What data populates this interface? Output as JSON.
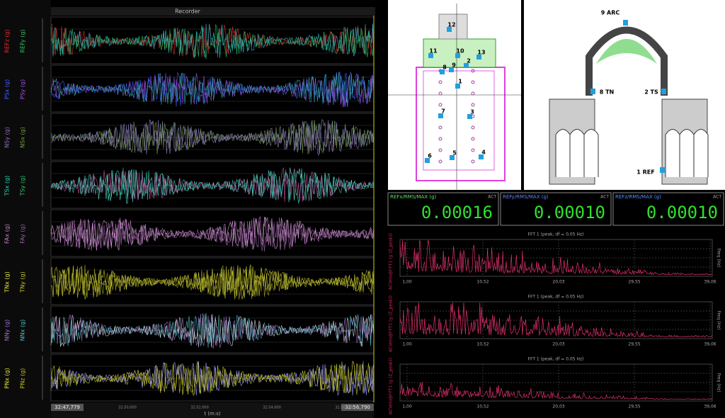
{
  "recorder": {
    "title": "Recorder",
    "strips": [
      {
        "labels": [
          "REFz (g)",
          "REFy (g)"
        ]
      },
      {
        "labels": [
          "PSx (g)",
          "PSy (g)"
        ]
      },
      {
        "labels": [
          "NSy (g)",
          "NSx (g)"
        ]
      },
      {
        "labels": [
          "TSx (g)",
          "TSy (g)"
        ]
      },
      {
        "labels": [
          "FAx (g)",
          "FAy (g)"
        ]
      },
      {
        "labels": [
          "TNx (g)",
          "TNy (g)"
        ]
      },
      {
        "labels": [
          "NNy (g)",
          "NNx (g)"
        ]
      },
      {
        "labels": [
          "PNx (g)",
          "PNz (g)"
        ]
      }
    ],
    "time_start": "32:47,779",
    "time_end": "32:56,790",
    "time_ticks": [
      "32:50,000",
      "32:52,000",
      "32:54,000",
      "32:56,000"
    ],
    "time_axis_label": "t (m:s)"
  },
  "plan": {
    "labels": [
      "12",
      "11",
      "10",
      "13",
      "8",
      "9",
      "2",
      "1",
      "7",
      "3",
      "6",
      "5",
      "4"
    ]
  },
  "section": {
    "labels": [
      "9 ARC",
      "8 TN",
      "2 TS",
      "1 REF"
    ]
  },
  "meters": [
    {
      "label": "REFx/RMS/MAX (g)",
      "status": "ACT",
      "value": "0.00016"
    },
    {
      "label": "REFy/RMS/MAX (g)",
      "status": "ACT",
      "value": "0.00010"
    },
    {
      "label": "REFz/RMS/MAX (g)",
      "status": "ACT",
      "value": "0.00010"
    }
  ],
  "fft": [
    {
      "title": "FFT 1 (peak, df = 0.05 Hz)",
      "y_label": "ACVelo@FFT1 (g (Z_peak))",
      "x_label": "Freq (Hz)",
      "x_ticks": [
        "1,00",
        "10,52",
        "20,03",
        "29,55",
        "39,06"
      ]
    },
    {
      "title": "FFT 1 (peak, df = 0.05 Hz)",
      "y_label": "ACVelo@FFT1 (g (Z_peak))",
      "x_label": "Freq (Hz)",
      "x_ticks": [
        "1,00",
        "10,52",
        "20,03",
        "29,55",
        "39,06"
      ]
    },
    {
      "title": "FFT 1 (peak, df = 0.05 Hz)",
      "y_label": "ACVelo@FFT1 (g (Z_peak))",
      "x_label": "Freq (Hz)",
      "x_ticks": [
        "1,00",
        "10,52",
        "20,03",
        "29,55",
        "39,06"
      ]
    }
  ]
}
